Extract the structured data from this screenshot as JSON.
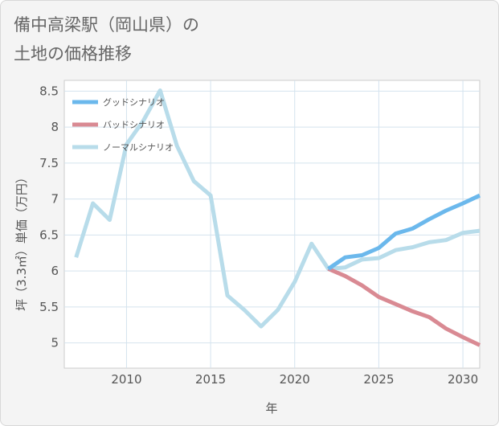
{
  "title_lines": [
    "備中高梁駅（岡山県）の",
    "土地の価格推移"
  ],
  "chart_data": {
    "type": "line",
    "xlabel": "年",
    "ylabel": "坪（3.3㎡）単価（万円）",
    "xlim": [
      2006.3,
      2031
    ],
    "ylim": [
      4.65,
      8.65
    ],
    "xticks": [
      2010,
      2015,
      2020,
      2025,
      2030
    ],
    "yticks": [
      5,
      5.5,
      6,
      6.5,
      7,
      7.5,
      8,
      8.5
    ],
    "xtick_labels": [
      "2010",
      "2015",
      "2020",
      "2025",
      "2030"
    ],
    "ytick_labels": [
      "5",
      "5.5",
      "6",
      "6.5",
      "7",
      "7.5",
      "8",
      "8.5"
    ],
    "grid": true,
    "legend_position": "top-left",
    "series": [
      {
        "name": "グッドシナリオ",
        "color": "#6bb8ec",
        "x": [
          2022,
          2023,
          2024,
          2025,
          2026,
          2027,
          2028,
          2029,
          2030,
          2031
        ],
        "y": [
          6.03,
          6.19,
          6.22,
          6.32,
          6.52,
          6.59,
          6.72,
          6.84,
          6.94,
          7.05
        ]
      },
      {
        "name": "バッドシナリオ",
        "color": "#d98a93",
        "x": [
          2022,
          2023,
          2024,
          2025,
          2026,
          2027,
          2028,
          2029,
          2030,
          2031
        ],
        "y": [
          6.03,
          5.93,
          5.8,
          5.64,
          5.54,
          5.44,
          5.36,
          5.2,
          5.08,
          4.97
        ]
      },
      {
        "name": "ノーマルシナリオ",
        "color": "#b8dcea",
        "x": [
          2007,
          2008,
          2009,
          2010,
          2011,
          2012,
          2013,
          2014,
          2015,
          2016,
          2017,
          2018,
          2019,
          2020,
          2021,
          2022,
          2023,
          2024,
          2025,
          2026,
          2027,
          2028,
          2029,
          2030,
          2031
        ],
        "y": [
          6.19,
          6.94,
          6.71,
          7.76,
          8.09,
          8.51,
          7.74,
          7.25,
          7.05,
          5.66,
          5.46,
          5.23,
          5.46,
          5.85,
          6.38,
          6.03,
          6.05,
          6.16,
          6.18,
          6.29,
          6.33,
          6.4,
          6.43,
          6.53,
          6.56
        ]
      }
    ]
  }
}
